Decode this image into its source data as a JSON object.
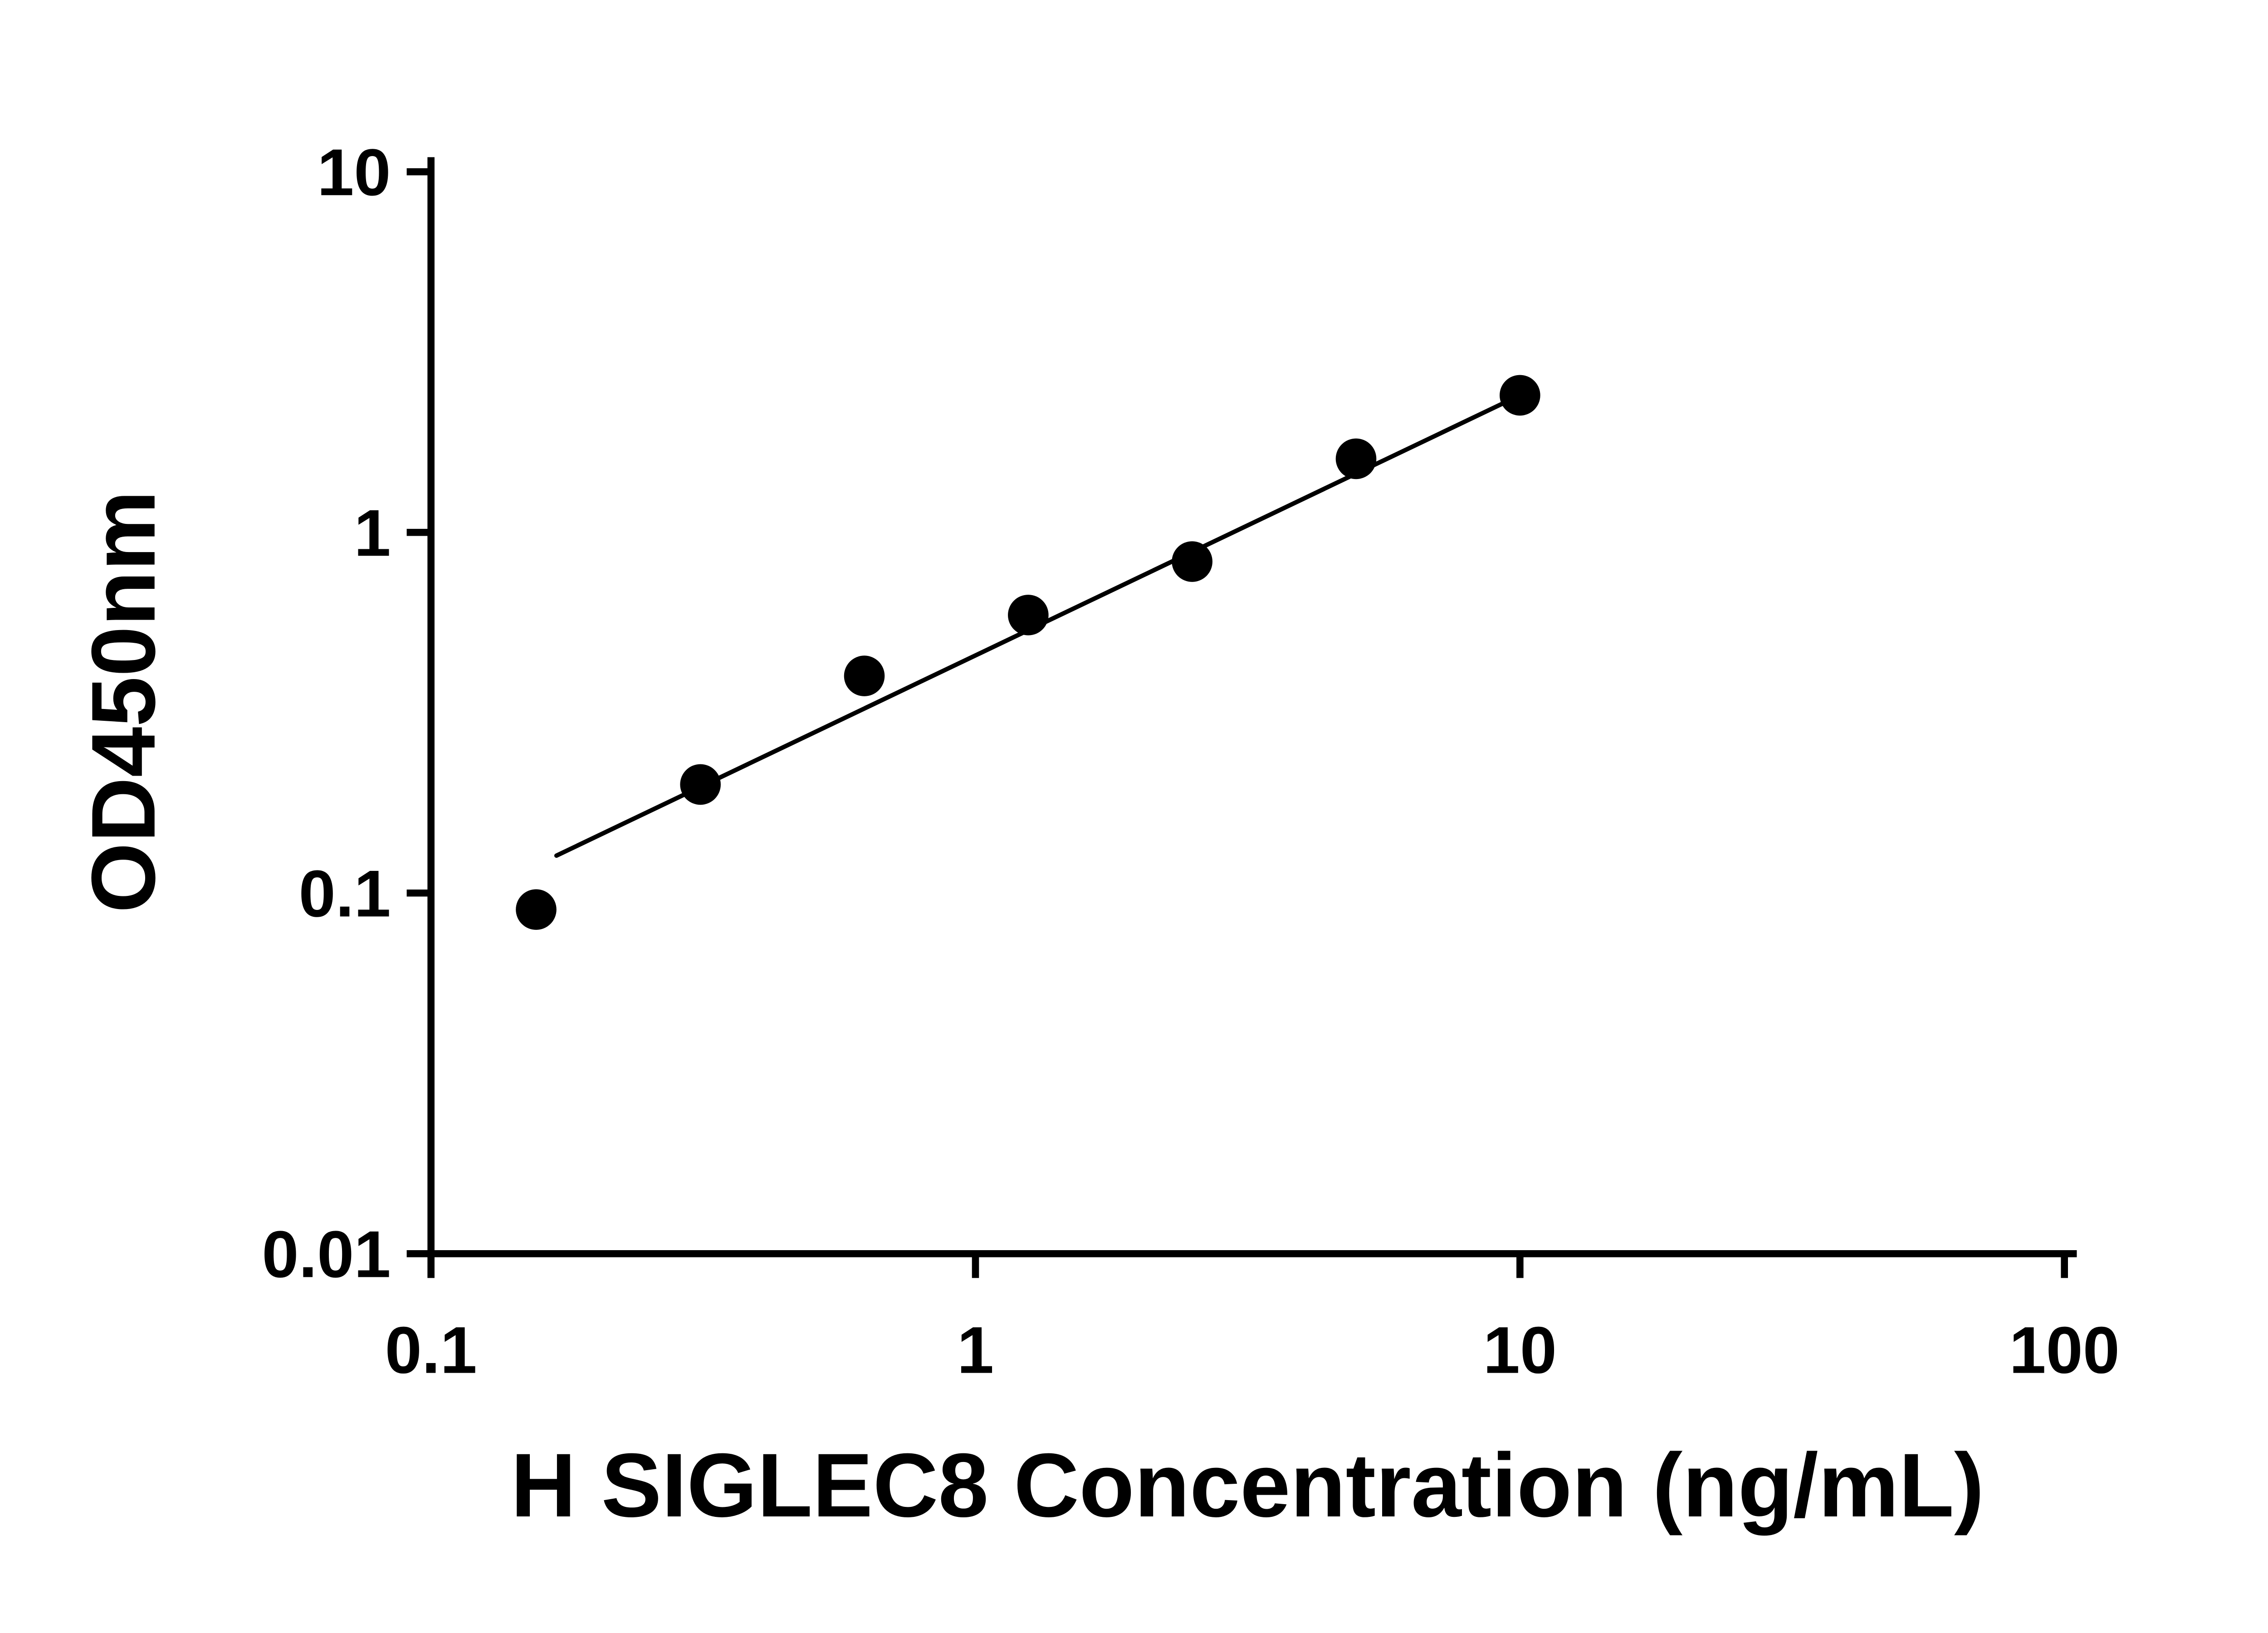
{
  "figure": {
    "background_color": "#ffffff",
    "foreground_color": "#000000"
  },
  "chart_data": {
    "type": "scatter",
    "title": "",
    "xlabel": "H SIGLEC8 Concentration (ng/mL)",
    "ylabel": "OD450nm",
    "x_scale": "log10",
    "y_scale": "log10",
    "xlim": [
      0.1,
      100
    ],
    "ylim": [
      0.01,
      10
    ],
    "grid": false,
    "legend": null,
    "x_ticks": [
      {
        "value": 0.1,
        "label": "0.1"
      },
      {
        "value": 1,
        "label": "1"
      },
      {
        "value": 10,
        "label": "10"
      },
      {
        "value": 100,
        "label": "100"
      }
    ],
    "y_ticks": [
      {
        "value": 0.01,
        "label": "0.01"
      },
      {
        "value": 0.1,
        "label": "0.1"
      },
      {
        "value": 1,
        "label": "1"
      },
      {
        "value": 10,
        "label": "10"
      }
    ],
    "series": [
      {
        "name": "standard-points",
        "type": "scatter",
        "marker": "circle",
        "marker_radius_px": 46,
        "color": "#000000",
        "points": [
          {
            "x": 0.156,
            "y": 0.09
          },
          {
            "x": 0.3125,
            "y": 0.2
          },
          {
            "x": 0.625,
            "y": 0.4
          },
          {
            "x": 1.25,
            "y": 0.59
          },
          {
            "x": 2.5,
            "y": 0.83
          },
          {
            "x": 5,
            "y": 1.6
          },
          {
            "x": 10,
            "y": 2.4
          }
        ]
      },
      {
        "name": "fit-line",
        "type": "line",
        "color": "#000000",
        "stroke_width_px": 10,
        "points": [
          {
            "x": 0.17,
            "y": 0.127
          },
          {
            "x": 10,
            "y": 2.4
          }
        ]
      }
    ]
  }
}
